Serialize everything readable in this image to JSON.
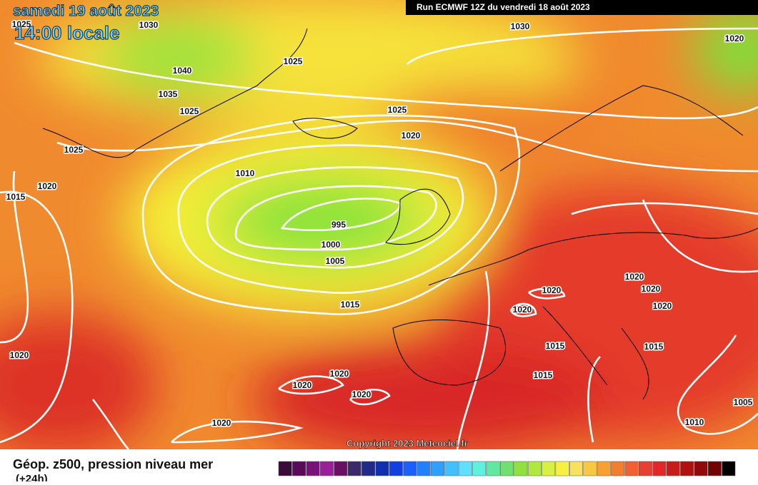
{
  "header": {
    "date": "samedi 19 août 2023",
    "time": "14:00 locale",
    "run": "Run ECMWF 12Z du vendredi 18 août 2023"
  },
  "isobar_labels": [
    "1030",
    "1020",
    "1030",
    "1040",
    "1035",
    "1025",
    "1025",
    "1025",
    "1025",
    "1025",
    "1020",
    "1010",
    "1020",
    "1015",
    "995",
    "1000",
    "1005",
    "1015",
    "1020",
    "1020",
    "1020",
    "1020",
    "1020",
    "1020",
    "1015",
    "1015",
    "1015",
    "1020",
    "1020",
    "1020",
    "1020",
    "1005",
    "1010"
  ],
  "copyright": "Copyright 2023 Meteociel.fr",
  "legend": {
    "title": "Géop. z500, pression niveau mer",
    "lead": "(+24h)"
  }
}
